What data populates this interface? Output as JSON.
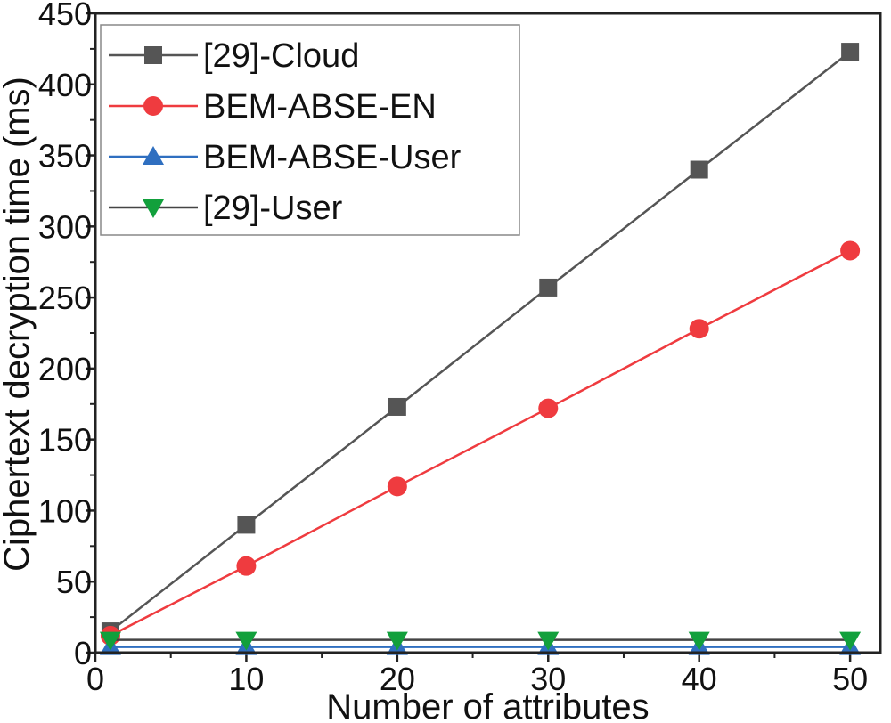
{
  "chart_data": {
    "type": "line",
    "xlabel": "Number of attributes",
    "ylabel": "Ciphertext decryption time (ms)",
    "xlim": [
      0,
      52
    ],
    "ylim": [
      0,
      450
    ],
    "x_ticks": [
      0,
      10,
      20,
      30,
      40,
      50
    ],
    "y_ticks": [
      0,
      50,
      100,
      150,
      200,
      250,
      300,
      350,
      400,
      450
    ],
    "grid": false,
    "legend_position": "top-left",
    "x": [
      1,
      10,
      20,
      30,
      40,
      50
    ],
    "series": [
      {
        "name": "[29]-Cloud",
        "color": "#555555",
        "marker": "square",
        "values": [
          15,
          90,
          173,
          257,
          340,
          423
        ]
      },
      {
        "name": "BEM-ABSE-EN",
        "color": "#ef3b3f",
        "marker": "circle",
        "values": [
          12,
          61,
          117,
          172,
          228,
          283
        ]
      },
      {
        "name": "BEM-ABSE-User",
        "color": "#2f6fc0",
        "marker": "triangle-up",
        "values": [
          4,
          4,
          4,
          4,
          4,
          4
        ]
      },
      {
        "name": "[29]-User",
        "color": "#12a03c",
        "marker": "triangle-down",
        "values": [
          9,
          9,
          9,
          9,
          9,
          9
        ]
      }
    ]
  }
}
